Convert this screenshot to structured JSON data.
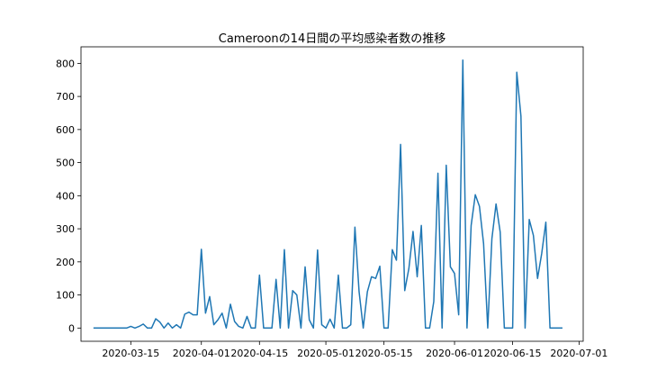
{
  "chart_data": {
    "type": "line",
    "title": "Cameroonの14日間の平均感染者数の推移",
    "xlabel": "",
    "ylabel": "",
    "x_ticks": [
      "2020-03-15",
      "2020-04-01",
      "2020-04-15",
      "2020-05-01",
      "2020-05-15",
      "2020-06-01",
      "2020-06-15",
      "2020-07-01"
    ],
    "y_ticks": [
      0,
      100,
      200,
      300,
      400,
      500,
      600,
      700,
      800
    ],
    "xlim": [
      "2020-03-03",
      "2020-07-02"
    ],
    "ylim": [
      -40,
      850
    ],
    "grid": false,
    "legend": "none",
    "colors": {
      "line": "#1f77b4",
      "axes": "#000000"
    },
    "series": [
      {
        "values": [
          {
            "x": "2020-03-06",
            "y": 0
          },
          {
            "x": "2020-03-14",
            "y": 0
          },
          {
            "x": "2020-03-15",
            "y": 5
          },
          {
            "x": "2020-03-16",
            "y": 0
          },
          {
            "x": "2020-03-17",
            "y": 5
          },
          {
            "x": "2020-03-18",
            "y": 12
          },
          {
            "x": "2020-03-19",
            "y": 0
          },
          {
            "x": "2020-03-20",
            "y": 0
          },
          {
            "x": "2020-03-21",
            "y": 28
          },
          {
            "x": "2020-03-22",
            "y": 18
          },
          {
            "x": "2020-03-23",
            "y": 0
          },
          {
            "x": "2020-03-24",
            "y": 15
          },
          {
            "x": "2020-03-25",
            "y": 0
          },
          {
            "x": "2020-03-26",
            "y": 10
          },
          {
            "x": "2020-03-27",
            "y": 0
          },
          {
            "x": "2020-03-28",
            "y": 42
          },
          {
            "x": "2020-03-29",
            "y": 48
          },
          {
            "x": "2020-03-30",
            "y": 40
          },
          {
            "x": "2020-03-31",
            "y": 40
          },
          {
            "x": "2020-04-01",
            "y": 238
          },
          {
            "x": "2020-04-02",
            "y": 45
          },
          {
            "x": "2020-04-03",
            "y": 95
          },
          {
            "x": "2020-04-04",
            "y": 10
          },
          {
            "x": "2020-04-05",
            "y": 25
          },
          {
            "x": "2020-04-06",
            "y": 45
          },
          {
            "x": "2020-04-07",
            "y": 0
          },
          {
            "x": "2020-04-08",
            "y": 72
          },
          {
            "x": "2020-04-09",
            "y": 20
          },
          {
            "x": "2020-04-10",
            "y": 5
          },
          {
            "x": "2020-04-11",
            "y": 0
          },
          {
            "x": "2020-04-12",
            "y": 35
          },
          {
            "x": "2020-04-13",
            "y": 0
          },
          {
            "x": "2020-04-14",
            "y": 0
          },
          {
            "x": "2020-04-15",
            "y": 160
          },
          {
            "x": "2020-04-16",
            "y": 0
          },
          {
            "x": "2020-04-17",
            "y": 0
          },
          {
            "x": "2020-04-18",
            "y": 0
          },
          {
            "x": "2020-04-19",
            "y": 147
          },
          {
            "x": "2020-04-20",
            "y": 0
          },
          {
            "x": "2020-04-21",
            "y": 237
          },
          {
            "x": "2020-04-22",
            "y": 0
          },
          {
            "x": "2020-04-23",
            "y": 113
          },
          {
            "x": "2020-04-24",
            "y": 100
          },
          {
            "x": "2020-04-25",
            "y": 0
          },
          {
            "x": "2020-04-26",
            "y": 185
          },
          {
            "x": "2020-04-27",
            "y": 25
          },
          {
            "x": "2020-04-28",
            "y": 0
          },
          {
            "x": "2020-04-29",
            "y": 236
          },
          {
            "x": "2020-04-30",
            "y": 10
          },
          {
            "x": "2020-05-01",
            "y": 0
          },
          {
            "x": "2020-05-02",
            "y": 27
          },
          {
            "x": "2020-05-03",
            "y": 0
          },
          {
            "x": "2020-05-04",
            "y": 160
          },
          {
            "x": "2020-05-05",
            "y": 0
          },
          {
            "x": "2020-05-06",
            "y": 0
          },
          {
            "x": "2020-05-07",
            "y": 10
          },
          {
            "x": "2020-05-08",
            "y": 305
          },
          {
            "x": "2020-05-09",
            "y": 110
          },
          {
            "x": "2020-05-10",
            "y": 0
          },
          {
            "x": "2020-05-11",
            "y": 110
          },
          {
            "x": "2020-05-12",
            "y": 155
          },
          {
            "x": "2020-05-13",
            "y": 150
          },
          {
            "x": "2020-05-14",
            "y": 187
          },
          {
            "x": "2020-05-15",
            "y": 0
          },
          {
            "x": "2020-05-16",
            "y": 0
          },
          {
            "x": "2020-05-17",
            "y": 237
          },
          {
            "x": "2020-05-18",
            "y": 205
          },
          {
            "x": "2020-05-19",
            "y": 555
          },
          {
            "x": "2020-05-20",
            "y": 113
          },
          {
            "x": "2020-05-21",
            "y": 180
          },
          {
            "x": "2020-05-22",
            "y": 292
          },
          {
            "x": "2020-05-23",
            "y": 155
          },
          {
            "x": "2020-05-24",
            "y": 310
          },
          {
            "x": "2020-05-25",
            "y": 0
          },
          {
            "x": "2020-05-26",
            "y": 0
          },
          {
            "x": "2020-05-27",
            "y": 80
          },
          {
            "x": "2020-05-28",
            "y": 468
          },
          {
            "x": "2020-05-29",
            "y": 0
          },
          {
            "x": "2020-05-30",
            "y": 492
          },
          {
            "x": "2020-05-31",
            "y": 185
          },
          {
            "x": "2020-06-01",
            "y": 165
          },
          {
            "x": "2020-06-02",
            "y": 40
          },
          {
            "x": "2020-06-03",
            "y": 810
          },
          {
            "x": "2020-06-04",
            "y": 0
          },
          {
            "x": "2020-06-05",
            "y": 310
          },
          {
            "x": "2020-06-06",
            "y": 403
          },
          {
            "x": "2020-06-07",
            "y": 368
          },
          {
            "x": "2020-06-08",
            "y": 255
          },
          {
            "x": "2020-06-09",
            "y": 0
          },
          {
            "x": "2020-06-10",
            "y": 270
          },
          {
            "x": "2020-06-11",
            "y": 375
          },
          {
            "x": "2020-06-12",
            "y": 290
          },
          {
            "x": "2020-06-13",
            "y": 0
          },
          {
            "x": "2020-06-14",
            "y": 0
          },
          {
            "x": "2020-06-15",
            "y": 0
          },
          {
            "x": "2020-06-16",
            "y": 773
          },
          {
            "x": "2020-06-17",
            "y": 640
          },
          {
            "x": "2020-06-18",
            "y": 0
          },
          {
            "x": "2020-06-19",
            "y": 328
          },
          {
            "x": "2020-06-20",
            "y": 280
          },
          {
            "x": "2020-06-21",
            "y": 150
          },
          {
            "x": "2020-06-22",
            "y": 225
          },
          {
            "x": "2020-06-23",
            "y": 320
          },
          {
            "x": "2020-06-24",
            "y": 0
          },
          {
            "x": "2020-06-27",
            "y": 0
          }
        ]
      }
    ]
  }
}
